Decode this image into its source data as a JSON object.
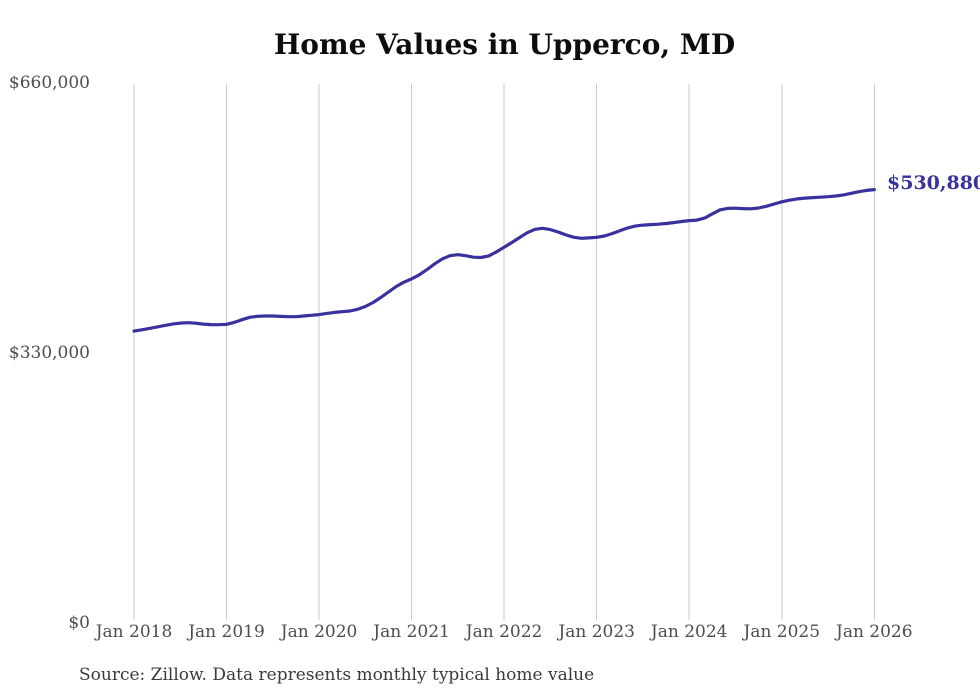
{
  "chart_data": {
    "type": "line",
    "title": "Home Values in Upperco, MD",
    "series_name": "Monthly typical home value",
    "x_interval": "monthly",
    "x_start": "Jan 2018",
    "x_end": "Jan 2026",
    "x_tick_labels": [
      "Jan 2018",
      "Jan 2019",
      "Jan 2020",
      "Jan 2021",
      "Jan 2022",
      "Jan 2023",
      "Jan 2024",
      "Jan 2025",
      "Jan 2026"
    ],
    "y_tick_labels": [
      "$660,000",
      "$330,000",
      "$0"
    ],
    "ylim": [
      0,
      660000
    ],
    "grid": "vertical-only",
    "legend": "none",
    "line_color": "#39319d",
    "grid_color": "#c9c9c9",
    "tick_color": "#4d4d4d",
    "end_label": "$530,880",
    "end_value": 530880,
    "values": [
      358000,
      359600,
      361300,
      363100,
      364900,
      366500,
      367800,
      368300,
      367600,
      366600,
      365900,
      365800,
      366300,
      368600,
      371900,
      374900,
      376100,
      376500,
      376400,
      376000,
      375600,
      375600,
      376400,
      377300,
      378200,
      379600,
      380800,
      381700,
      382600,
      384600,
      388100,
      393000,
      399100,
      405800,
      412500,
      417800,
      421800,
      426800,
      433200,
      440200,
      446400,
      450300,
      451400,
      450100,
      448300,
      447900,
      449900,
      454800,
      460500,
      466300,
      472400,
      478300,
      482400,
      483600,
      482100,
      479100,
      475600,
      472700,
      471400,
      471900,
      472600,
      474200,
      477100,
      480600,
      484000,
      486300,
      487500,
      488100,
      488700,
      489500,
      490600,
      491900,
      493100,
      493600,
      496100,
      501300,
      506300,
      508000,
      508200,
      507700,
      507500,
      508400,
      510500,
      513300,
      516000,
      518000,
      519600,
      520500,
      521100,
      521700,
      522200,
      523100,
      524500,
      526400,
      528400,
      530000,
      530880
    ]
  },
  "footer": {
    "source_note": "Source: Zillow. Data represents monthly typical home value"
  }
}
